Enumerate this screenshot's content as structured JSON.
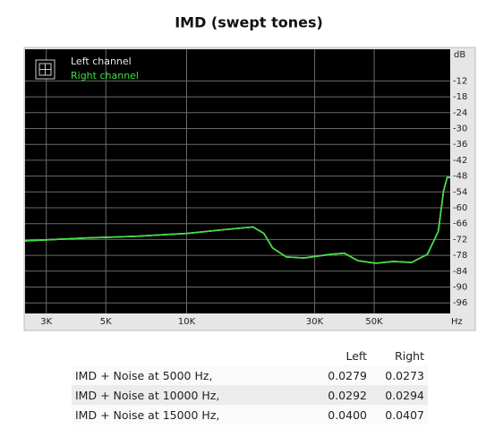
{
  "chart_data": {
    "type": "line",
    "title": "IMD (swept tones)",
    "y_unit": "dB",
    "x_unit": "Hz",
    "log_x": true,
    "grid": true,
    "x": [
      2500,
      4340,
      6380,
      10100,
      13700,
      17700,
      19400,
      20900,
      23500,
      27400,
      34500,
      38700,
      43400,
      50700,
      59000,
      68900,
      79000,
      86700,
      90700,
      93600,
      96000
    ],
    "series": [
      {
        "name": "Left channel",
        "color": "#e8e8e8",
        "values": [
          -72.5,
          -71.4,
          -70.8,
          -69.7,
          -68.3,
          -67.3,
          -69.7,
          -75.2,
          -78.6,
          -79,
          -77.6,
          -77.2,
          -80,
          -81,
          -80.3,
          -80.7,
          -77.6,
          -68.9,
          -53.6,
          -48.5,
          -48.5
        ]
      },
      {
        "name": "Right channel",
        "color": "#3ee03e",
        "values": [
          -72.5,
          -71.4,
          -70.8,
          -69.7,
          -68.3,
          -67.3,
          -69.7,
          -75.2,
          -78.6,
          -79,
          -77.6,
          -77.2,
          -80,
          -81,
          -80.3,
          -80.7,
          -77.6,
          -68.9,
          -53.6,
          -48.5,
          -48.5
        ]
      }
    ],
    "xlim": [
      2500,
      96000
    ],
    "xticks": [
      {
        "value": 3000,
        "label": "3K"
      },
      {
        "value": 5000,
        "label": "5K"
      },
      {
        "value": 10000,
        "label": "10K"
      },
      {
        "value": 30000,
        "label": "30K"
      },
      {
        "value": 50000,
        "label": "50K"
      }
    ],
    "ylim": [
      -100,
      0
    ],
    "yticks": [
      -12,
      -18,
      -24,
      -30,
      -36,
      -42,
      -48,
      -54,
      -60,
      -66,
      -72,
      -78,
      -84,
      -90,
      -96
    ]
  },
  "table": {
    "header": [
      "Left",
      "Right"
    ],
    "rows": [
      [
        "IMD + Noise at 5000 Hz,",
        "0.0279",
        "0.0273"
      ],
      [
        "IMD + Noise at 10000 Hz,",
        "0.0292",
        "0.0294"
      ],
      [
        "IMD + Noise at 15000 Hz,",
        "0.0400",
        "0.0407"
      ]
    ]
  }
}
